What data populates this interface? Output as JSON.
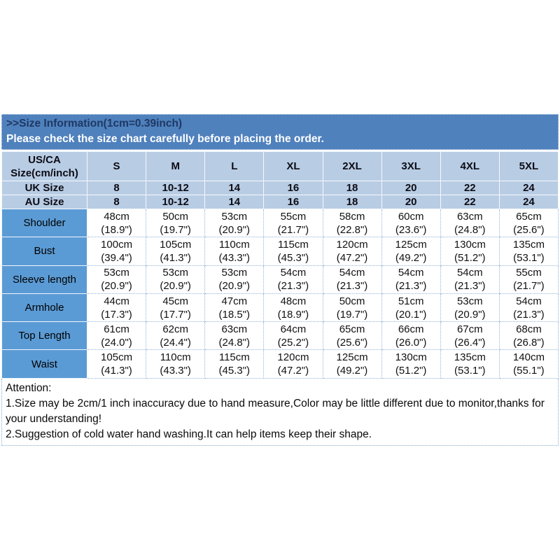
{
  "banner": {
    "title": ">>Size Information(1cm=0.39inch)",
    "subtitle": "Please check the size chart carefully before placing the order."
  },
  "table": {
    "corner_label": "US/CA\nSize(cm/inch)",
    "sizes": [
      "S",
      "M",
      "L",
      "XL",
      "2XL",
      "3XL",
      "4XL",
      "5XL"
    ],
    "uk": {
      "label": "UK Size",
      "values": [
        "8",
        "10-12",
        "14",
        "16",
        "18",
        "20",
        "22",
        "24"
      ]
    },
    "au": {
      "label": "AU Size",
      "values": [
        "8",
        "10-12",
        "14",
        "16",
        "18",
        "20",
        "22",
        "24"
      ]
    },
    "measurements": [
      {
        "label": "Shoulder",
        "values": [
          "48cm\n(18.9\")",
          "50cm\n(19.7\")",
          "53cm\n(20.9\")",
          "55cm\n(21.7\")",
          "58cm\n(22.8\")",
          "60cm\n(23.6\")",
          "63cm\n(24.8\")",
          "65cm\n(25.6\")"
        ]
      },
      {
        "label": "Bust",
        "values": [
          "100cm\n(39.4\")",
          "105cm\n(41.3\")",
          "110cm\n(43.3\")",
          "115cm\n(45.3\")",
          "120cm\n(47.2\")",
          "125cm\n(49.2\")",
          "130cm\n(51.2\")",
          "135cm\n(53.1\")"
        ]
      },
      {
        "label": "Sleeve length",
        "values": [
          "53cm\n(20.9\")",
          "53cm\n(20.9\")",
          "53cm\n(20.9\")",
          "54cm\n(21.3\")",
          "54cm\n(21.3\")",
          "54cm\n(21.3\")",
          "54cm\n(21.3\")",
          "55cm\n(21.7\")"
        ]
      },
      {
        "label": "Armhole",
        "values": [
          "44cm\n(17.3\")",
          "45cm\n(17.7\")",
          "47cm\n(18.5\")",
          "48cm\n(18.9\")",
          "50cm\n(19.7\")",
          "51cm\n(20.1\")",
          "53cm\n(20.9\")",
          "54cm\n(21.3\")"
        ]
      },
      {
        "label": "Top Length",
        "values": [
          "61cm\n(24.0\")",
          "62cm\n(24.4\")",
          "63cm\n(24.8\")",
          "64cm\n(25.2\")",
          "65cm\n(25.6\")",
          "66cm\n(26.0\")",
          "67cm\n(26.4\")",
          "68cm\n(26.8\")"
        ]
      },
      {
        "label": "Waist",
        "values": [
          "105cm\n(41.3\")",
          "110cm\n(43.3\")",
          "115cm\n(45.3\")",
          "120cm\n(47.2\")",
          "125cm\n(49.2\")",
          "130cm\n(51.2\")",
          "135cm\n(53.1\")",
          "140cm\n(55.1\")"
        ]
      }
    ]
  },
  "attention": {
    "title": "Attention:",
    "line1": "1.Size may be 2cm/1 inch inaccuracy due to hand measure,Color may be little different due to monitor,thanks for your understanding!",
    "line2": "2.Suggestion of cold water hand washing.It can help items keep their shape."
  },
  "colors": {
    "banner_bg": "#4f81bd",
    "banner_title_text": "#1f3864",
    "banner_subtitle_text": "#ffffff",
    "header_cell_bg": "#b8cce4",
    "row_label_bg": "#5b9bd5",
    "data_cell_bg": "#ffffff",
    "dotted_border": "#95b3d7"
  }
}
